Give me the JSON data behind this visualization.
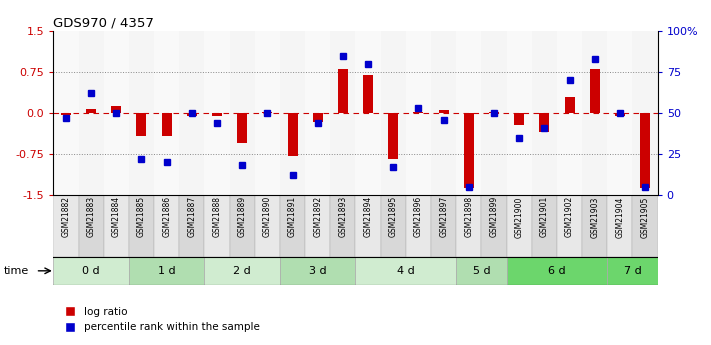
{
  "title": "GDS970 / 4357",
  "samples": [
    "GSM21882",
    "GSM21883",
    "GSM21884",
    "GSM21885",
    "GSM21886",
    "GSM21887",
    "GSM21888",
    "GSM21889",
    "GSM21890",
    "GSM21891",
    "GSM21892",
    "GSM21893",
    "GSM21894",
    "GSM21895",
    "GSM21896",
    "GSM21897",
    "GSM21898",
    "GSM21899",
    "GSM21900",
    "GSM21901",
    "GSM21902",
    "GSM21903",
    "GSM21904",
    "GSM21905"
  ],
  "log_ratio": [
    -0.04,
    0.08,
    0.13,
    -0.43,
    -0.43,
    -0.05,
    -0.06,
    -0.55,
    0.02,
    -0.78,
    -0.16,
    0.81,
    0.7,
    -0.85,
    0.02,
    0.06,
    -1.38,
    0.01,
    -0.22,
    -0.35,
    0.3,
    0.8,
    -0.05,
    -1.38
  ],
  "percentile": [
    47,
    62,
    50,
    22,
    20,
    50,
    44,
    18,
    50,
    12,
    44,
    85,
    80,
    17,
    53,
    46,
    5,
    50,
    35,
    41,
    70,
    83,
    50,
    5
  ],
  "time_groups_list": [
    "0 d",
    "0 d",
    "0 d",
    "1 d",
    "1 d",
    "1 d",
    "2 d",
    "2 d",
    "2 d",
    "3 d",
    "3 d",
    "3 d",
    "4 d",
    "4 d",
    "4 d",
    "4 d",
    "5 d",
    "5 d",
    "6 d",
    "6 d",
    "6 d",
    "6 d",
    "7 d",
    "7 d"
  ],
  "time_group_spans": [
    {
      "label": "0 d",
      "start": 0,
      "end": 2,
      "color": "#d0ecd0"
    },
    {
      "label": "1 d",
      "start": 3,
      "end": 5,
      "color": "#b0deb0"
    },
    {
      "label": "2 d",
      "start": 6,
      "end": 8,
      "color": "#d0ecd0"
    },
    {
      "label": "3 d",
      "start": 9,
      "end": 11,
      "color": "#b0deb0"
    },
    {
      "label": "4 d",
      "start": 12,
      "end": 15,
      "color": "#d0ecd0"
    },
    {
      "label": "5 d",
      "start": 16,
      "end": 17,
      "color": "#b0deb0"
    },
    {
      "label": "6 d",
      "start": 18,
      "end": 21,
      "color": "#6cd66c"
    },
    {
      "label": "7 d",
      "start": 22,
      "end": 23,
      "color": "#6cd66c"
    }
  ],
  "sample_col_colors": [
    "#e8e8e8",
    "#d8d8d8"
  ],
  "ylim": [
    -1.5,
    1.5
  ],
  "yticks_left": [
    -1.5,
    -0.75,
    0.0,
    0.75,
    1.5
  ],
  "yticks_right_pct": [
    0,
    25,
    50,
    75,
    100
  ],
  "bar_color": "#cc0000",
  "scatter_color": "#0000cc",
  "bg_color": "#ffffff",
  "hline_red_color": "#cc0000",
  "dotline_color": "#888888"
}
